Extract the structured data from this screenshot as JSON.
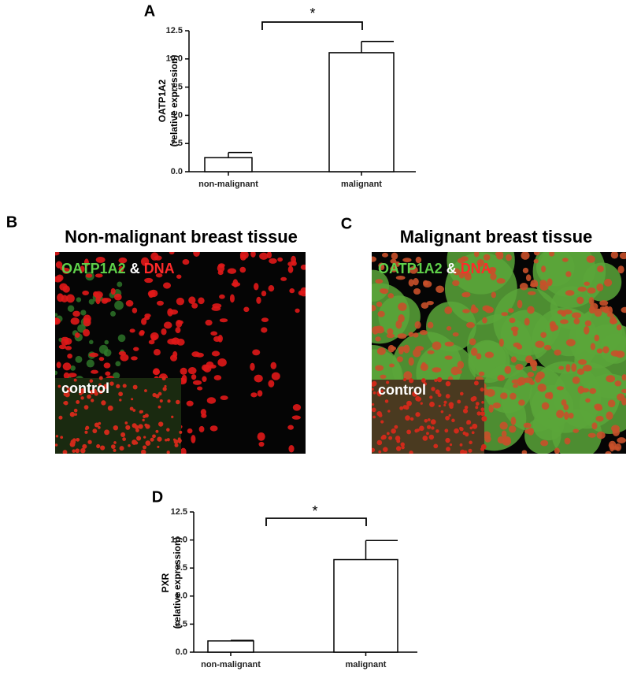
{
  "chart_data": [
    {
      "type": "bar",
      "panel": "A",
      "y_label": [
        "OATP1A2",
        "(relative expression)"
      ],
      "categories": [
        "non-malignant",
        "malignant"
      ],
      "values": [
        1.25,
        10.55
      ],
      "errors": [
        0.45,
        1.0
      ],
      "color": "#ffffff",
      "ylim": [
        0,
        12.5
      ],
      "yticks": [
        {
          "value": 0,
          "label": "0.0"
        },
        2.5,
        {
          "value": 5,
          "label": "5.0"
        },
        7.5,
        {
          "value": 10,
          "label": "10.0"
        },
        12.5
      ],
      "annotation": "*"
    },
    {
      "type": "bar",
      "panel": "D",
      "y_label": [
        "PXR",
        "(relative expression)"
      ],
      "categories": [
        "non-malignant",
        "malignant"
      ],
      "values": [
        1.0,
        8.25
      ],
      "errors": [
        0.05,
        1.7
      ],
      "color": "#ffffff",
      "ylim": [
        0,
        12.5
      ],
      "yticks": [
        {
          "value": 0,
          "label": "0.0"
        },
        2.5,
        {
          "value": 5,
          "label": "5.0"
        },
        7.5,
        {
          "value": 10,
          "label": "10.0"
        },
        12.5
      ],
      "annotation": "*"
    }
  ],
  "images": [
    {
      "panel": "B",
      "title": "Non-malignant breast tissue",
      "stain": [
        "OATP1A2",
        "&",
        "DNA"
      ],
      "inset": "control"
    },
    {
      "panel": "C",
      "title": "Malignant breast tissue",
      "stain": [
        "OATP1A2",
        "&",
        "DNA"
      ],
      "inset": "control"
    }
  ]
}
